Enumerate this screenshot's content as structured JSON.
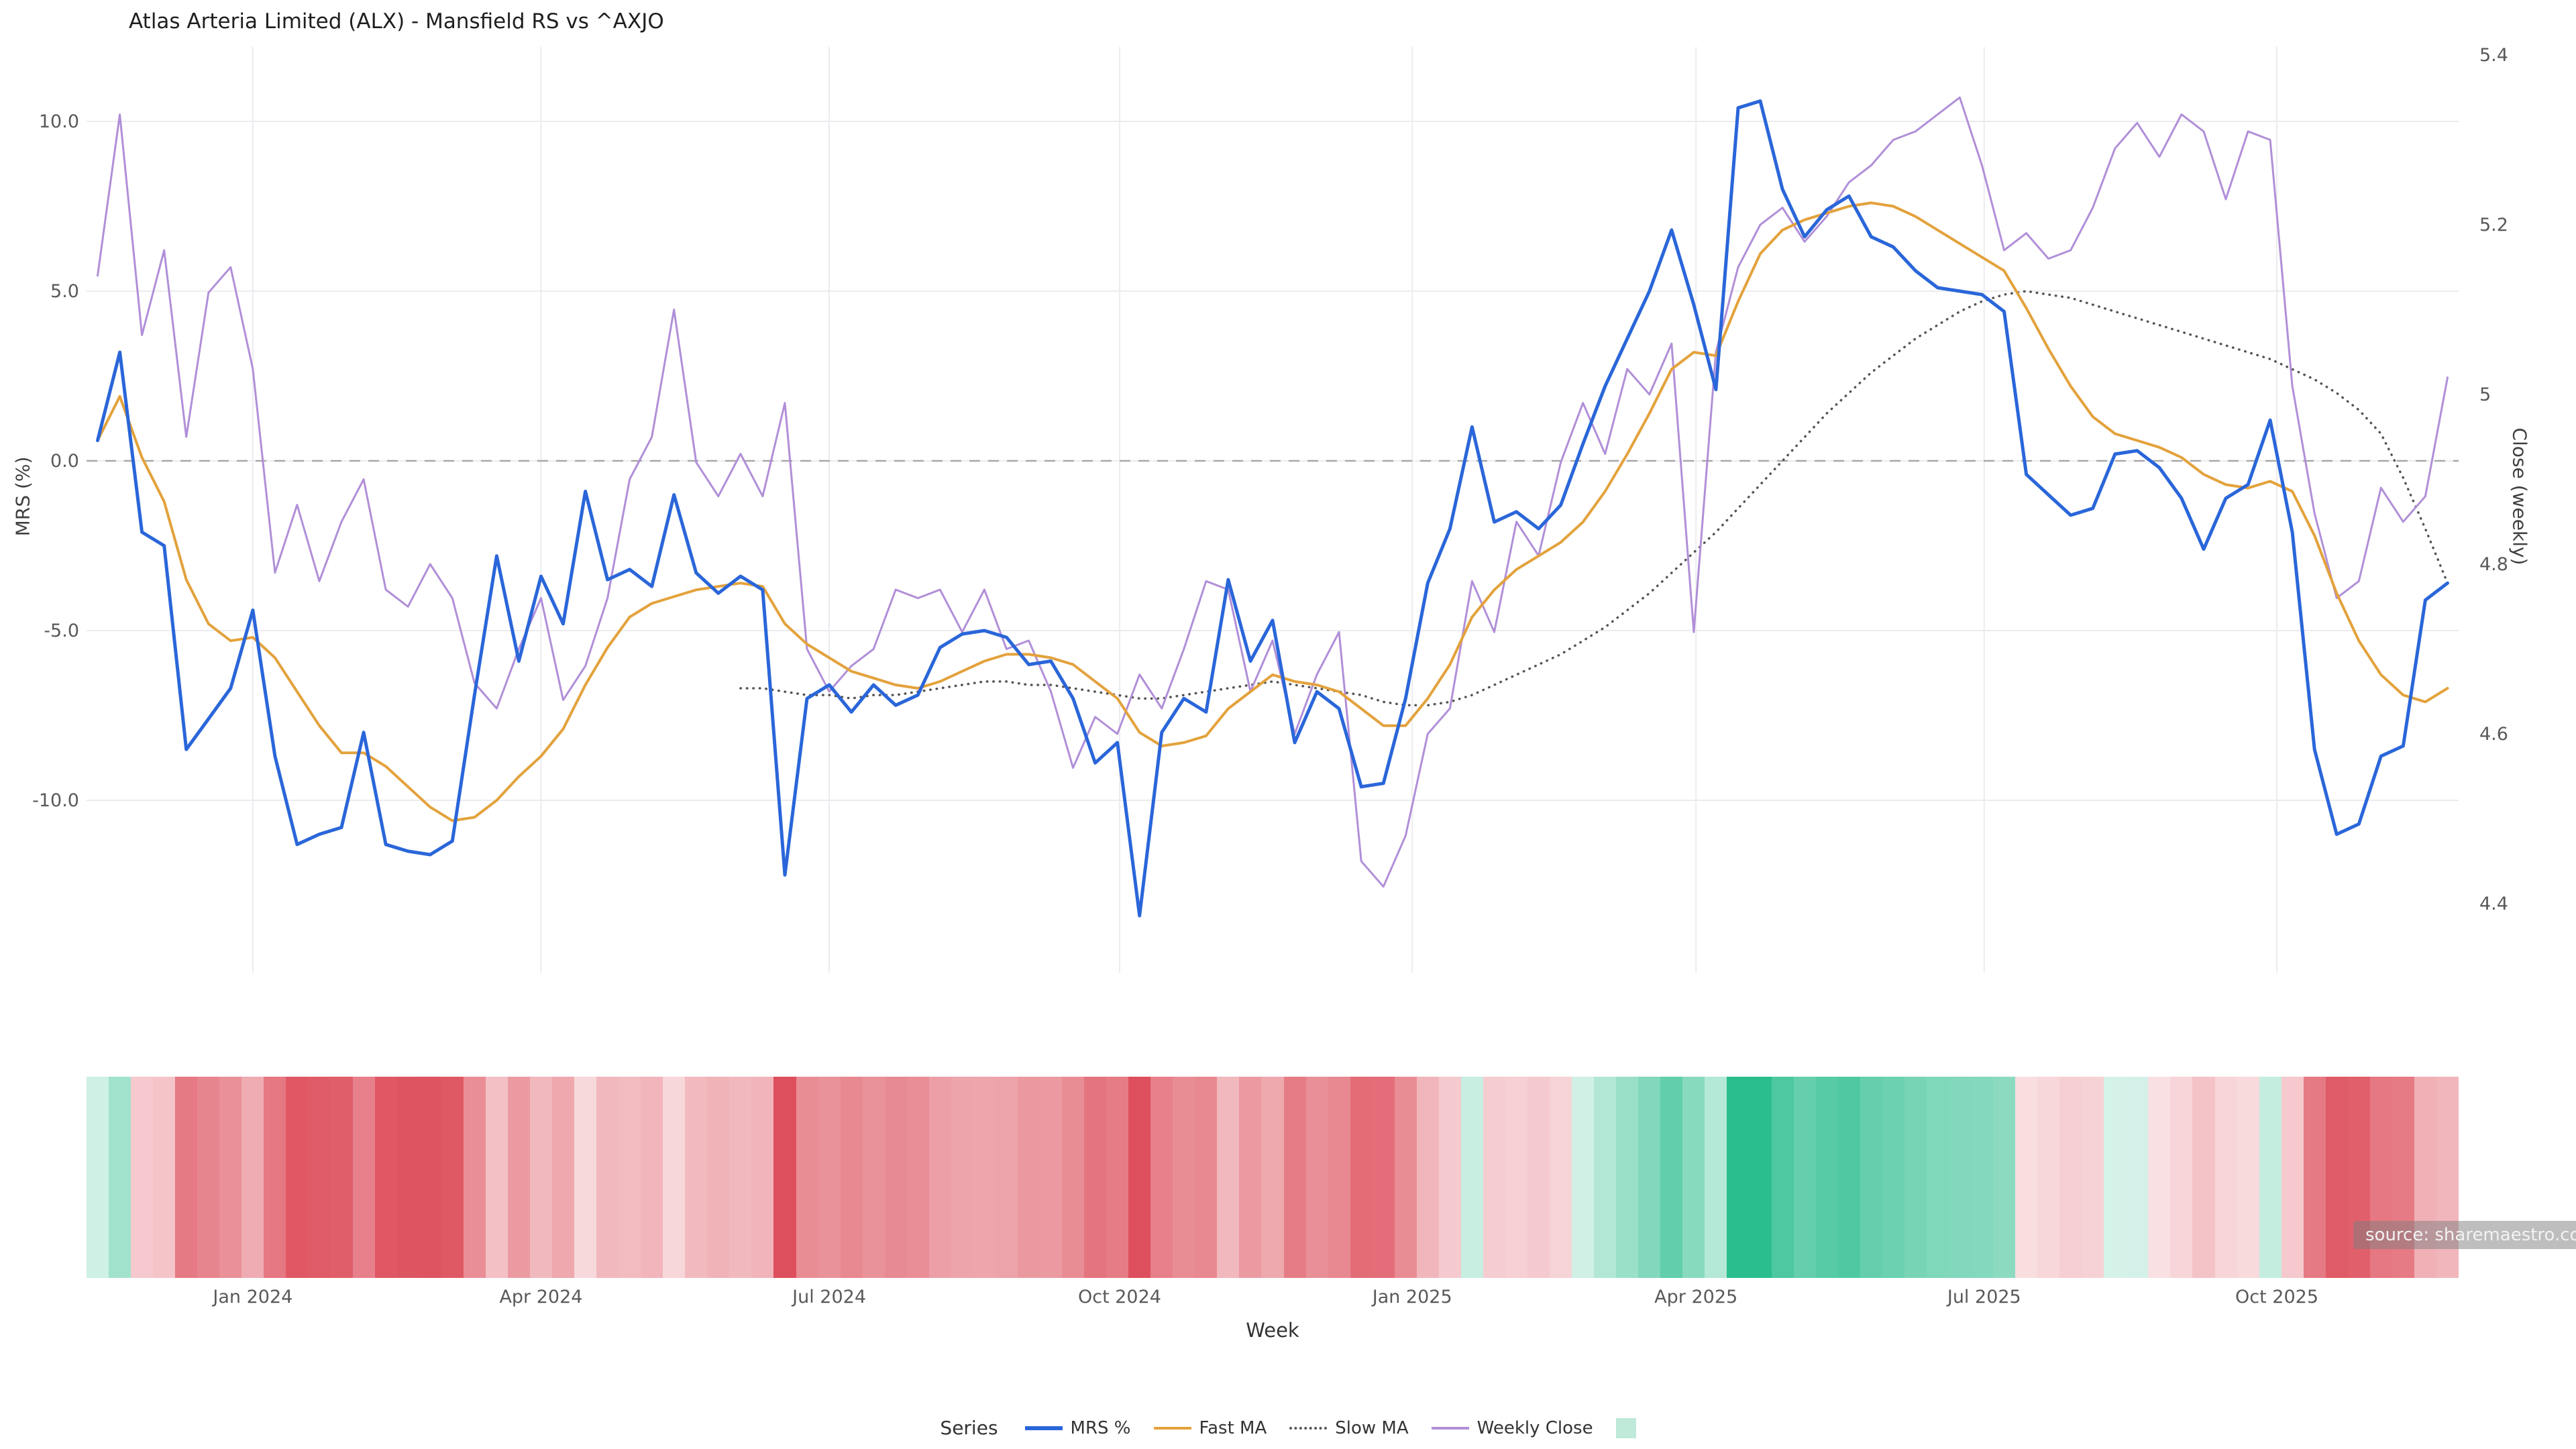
{
  "page": {
    "title": "Atlas Arteria Limited (ALX) - Mansfield RS vs ^AXJO",
    "source": "source: sharemaestro.com"
  },
  "axes": {
    "x_title": "Week",
    "y_title_left": "MRS (%)",
    "y_title_right": "Close (weekly)"
  },
  "legend": {
    "title": "Series",
    "items": [
      {
        "label": "MRS %",
        "type": "line",
        "color": "#2a66d9"
      },
      {
        "label": "Fast MA",
        "type": "line",
        "color": "#e3a23c"
      },
      {
        "label": "Slow MA",
        "type": "dotted",
        "color": "#555555"
      },
      {
        "label": "Weekly Close",
        "type": "line",
        "color": "#b18fd8"
      },
      {
        "label": "",
        "type": "square",
        "color": "#bfe9d9"
      }
    ]
  },
  "chart_data": {
    "type": "line",
    "title": "Atlas Arteria Limited (ALX) - Mansfield RS vs ^AXJO",
    "xlabel": "Week",
    "ylabel_left": "MRS (%)",
    "ylabel_right": "Close (weekly)",
    "n_weeks": 107,
    "x_unit": "weekly, Nov 2023 - Nov 2025",
    "ylim_left": [
      -14.5,
      12.5
    ],
    "ylim_right": [
      4.35,
      5.45
    ],
    "grid": true,
    "zero_line": {
      "value": 0,
      "style": "dashed",
      "color": "#a8a8a8"
    },
    "left_ticks": [
      {
        "value": 10,
        "label": "10.0"
      },
      {
        "value": 5,
        "label": "5.0"
      },
      {
        "value": 0,
        "label": "0.0"
      },
      {
        "value": -5,
        "label": "-5.0"
      },
      {
        "value": -10,
        "label": "-10.0"
      }
    ],
    "right_ticks": [
      {
        "value": 5.4,
        "label": "5.4"
      },
      {
        "value": 5.2,
        "label": "5.2"
      },
      {
        "value": 5.0,
        "label": "5"
      },
      {
        "value": 4.8,
        "label": "4.8"
      },
      {
        "value": 4.6,
        "label": "4.6"
      },
      {
        "value": 4.4,
        "label": "4.4"
      }
    ],
    "x_ticks": [
      {
        "index": 7,
        "label": "Jan 2024"
      },
      {
        "index": 20,
        "label": "Apr 2024"
      },
      {
        "index": 33,
        "label": "Jul 2024"
      },
      {
        "index": 46.1,
        "label": "Oct 2024"
      },
      {
        "index": 59.3,
        "label": "Jan 2025"
      },
      {
        "index": 72.1,
        "label": "Apr 2025"
      },
      {
        "index": 85.1,
        "label": "Jul 2025"
      },
      {
        "index": 98.3,
        "label": "Oct 2025"
      }
    ],
    "series": [
      {
        "name": "MRS %",
        "axis": "left",
        "color": "#2a66d9",
        "width": 5,
        "style": "solid",
        "z": 4,
        "values": [
          0.6,
          3.2,
          -2.1,
          -2.5,
          -8.5,
          -7.6,
          -6.7,
          -4.4,
          -8.7,
          -11.3,
          -11.0,
          -10.8,
          -8.0,
          -11.3,
          -11.5,
          -11.6,
          -11.2,
          -6.9,
          -2.8,
          -5.9,
          -3.4,
          -4.8,
          -0.9,
          -3.5,
          -3.2,
          -3.7,
          -1.0,
          -3.3,
          -3.9,
          -3.4,
          -3.8,
          -12.2,
          -7.0,
          -6.6,
          -7.4,
          -6.6,
          -7.2,
          -6.9,
          -5.5,
          -5.1,
          -5.0,
          -5.2,
          -6.0,
          -5.9,
          -7.0,
          -8.9,
          -8.3,
          -13.4,
          -8.0,
          -7.0,
          -7.4,
          -3.5,
          -5.9,
          -4.7,
          -8.3,
          -6.8,
          -7.3,
          -9.6,
          -9.5,
          -7.0,
          -3.6,
          -2.0,
          1.0,
          -1.8,
          -1.5,
          -2.0,
          -1.3,
          0.5,
          2.2,
          3.6,
          5.0,
          6.8,
          4.6,
          2.1,
          10.4,
          10.6,
          8.0,
          6.6,
          7.4,
          7.8,
          6.6,
          6.3,
          5.6,
          5.1,
          5.0,
          4.9,
          4.4,
          -0.4,
          -1.0,
          -1.6,
          -1.4,
          0.2,
          0.3,
          -0.2,
          -1.1,
          -2.6,
          -1.1,
          -0.7,
          1.2,
          -2.1,
          -8.5,
          -11.0,
          -10.7,
          -8.7,
          -8.4,
          -4.1,
          -3.6
        ]
      },
      {
        "name": "Fast MA",
        "axis": "left",
        "color": "#e3a23c",
        "width": 4,
        "style": "solid",
        "z": 3,
        "values": [
          0.6,
          1.9,
          0.1,
          -1.2,
          -3.5,
          -4.8,
          -5.3,
          -5.2,
          -5.8,
          -6.8,
          -7.8,
          -8.6,
          -8.6,
          -9.0,
          -9.6,
          -10.2,
          -10.6,
          -10.5,
          -10.0,
          -9.3,
          -8.7,
          -7.9,
          -6.6,
          -5.5,
          -4.6,
          -4.2,
          -4.0,
          -3.8,
          -3.7,
          -3.6,
          -3.7,
          -4.8,
          -5.4,
          -5.8,
          -6.2,
          -6.4,
          -6.6,
          -6.7,
          -6.5,
          -6.2,
          -5.9,
          -5.7,
          -5.7,
          -5.8,
          -6.0,
          -6.5,
          -7.0,
          -8.0,
          -8.4,
          -8.3,
          -8.1,
          -7.3,
          -6.8,
          -6.3,
          -6.5,
          -6.6,
          -6.8,
          -7.3,
          -7.8,
          -7.8,
          -7.0,
          -6.0,
          -4.6,
          -3.8,
          -3.2,
          -2.8,
          -2.4,
          -1.8,
          -0.9,
          0.2,
          1.4,
          2.7,
          3.2,
          3.1,
          4.7,
          6.1,
          6.8,
          7.1,
          7.3,
          7.5,
          7.6,
          7.5,
          7.2,
          6.8,
          6.4,
          6.0,
          5.6,
          4.5,
          3.3,
          2.2,
          1.3,
          0.8,
          0.6,
          0.4,
          0.1,
          -0.4,
          -0.7,
          -0.8,
          -0.6,
          -0.9,
          -2.2,
          -3.9,
          -5.3,
          -6.3,
          -6.9,
          -7.1,
          -6.7
        ]
      },
      {
        "name": "Slow MA",
        "axis": "left",
        "color": "#555555",
        "width": 3.5,
        "style": "dotted",
        "z": 1,
        "values": [
          null,
          null,
          null,
          null,
          null,
          null,
          null,
          null,
          null,
          null,
          null,
          null,
          null,
          null,
          null,
          null,
          null,
          null,
          null,
          null,
          null,
          null,
          null,
          null,
          null,
          null,
          null,
          null,
          null,
          -6.7,
          -6.7,
          -6.8,
          -6.9,
          -6.9,
          -7.0,
          -6.9,
          -6.9,
          -6.8,
          -6.7,
          -6.6,
          -6.5,
          -6.5,
          -6.6,
          -6.6,
          -6.7,
          -6.8,
          -6.9,
          -7.0,
          -7.0,
          -6.9,
          -6.8,
          -6.7,
          -6.6,
          -6.5,
          -6.6,
          -6.7,
          -6.8,
          -6.9,
          -7.1,
          -7.2,
          -7.2,
          -7.1,
          -6.9,
          -6.6,
          -6.3,
          -6.0,
          -5.7,
          -5.3,
          -4.9,
          -4.4,
          -3.9,
          -3.3,
          -2.7,
          -2.1,
          -1.4,
          -0.7,
          0.0,
          0.7,
          1.4,
          2.0,
          2.6,
          3.1,
          3.6,
          4.0,
          4.4,
          4.7,
          4.9,
          5.0,
          4.9,
          4.8,
          4.6,
          4.4,
          4.2,
          4.0,
          3.8,
          3.6,
          3.4,
          3.2,
          3.0,
          2.7,
          2.4,
          2.0,
          1.5,
          0.8,
          -0.5,
          -2.0,
          -3.6
        ]
      },
      {
        "name": "Weekly Close",
        "axis": "right",
        "color": "#b18fd8",
        "width": 3,
        "style": "solid",
        "z": 2,
        "values": [
          5.14,
          5.33,
          5.07,
          5.17,
          4.95,
          5.12,
          5.15,
          5.03,
          4.79,
          4.87,
          4.78,
          4.85,
          4.9,
          4.77,
          4.75,
          4.8,
          4.76,
          4.66,
          4.63,
          4.7,
          4.76,
          4.64,
          4.68,
          4.76,
          4.9,
          4.95,
          5.1,
          4.92,
          4.88,
          4.93,
          4.88,
          4.99,
          4.7,
          4.65,
          4.68,
          4.7,
          4.77,
          4.76,
          4.77,
          4.72,
          4.77,
          4.7,
          4.71,
          4.65,
          4.56,
          4.62,
          4.6,
          4.67,
          4.63,
          4.7,
          4.78,
          4.77,
          4.65,
          4.71,
          4.6,
          4.67,
          4.72,
          4.45,
          4.42,
          4.48,
          4.6,
          4.63,
          4.78,
          4.72,
          4.85,
          4.81,
          4.92,
          4.99,
          4.93,
          5.03,
          5.0,
          5.06,
          4.72,
          5.05,
          5.15,
          5.2,
          5.22,
          5.18,
          5.21,
          5.25,
          5.27,
          5.3,
          5.31,
          5.33,
          5.35,
          5.27,
          5.17,
          5.19,
          5.16,
          5.17,
          5.22,
          5.29,
          5.32,
          5.28,
          5.33,
          5.31,
          5.23,
          5.31,
          5.3,
          5.01,
          4.86,
          4.76,
          4.78,
          4.89,
          4.85,
          4.88,
          5.02
        ]
      }
    ],
    "heatmap": {
      "values_from": "MRS %",
      "positive_color": "#2abd8d",
      "negative_color": "#dd4f5c",
      "neutral_color": "#ffffff",
      "legend_swatch_color": "#bfe9d9"
    }
  }
}
